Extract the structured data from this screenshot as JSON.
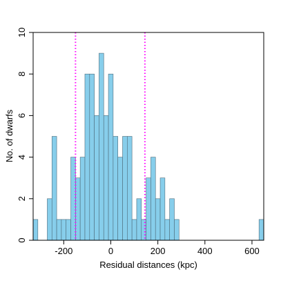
{
  "chart_data": {
    "type": "histogram",
    "xlabel": "Residual distances (kpc)",
    "ylabel": "No. of dwarfs",
    "bins": [
      -330,
      -310,
      -290,
      -270,
      -250,
      -230,
      -210,
      -190,
      -170,
      -150,
      -130,
      -110,
      -90,
      -70,
      -50,
      -30,
      -10,
      10,
      30,
      50,
      70,
      90,
      110,
      130,
      150,
      170,
      190,
      210,
      230,
      250,
      270,
      290,
      310,
      330,
      350,
      370,
      390,
      410,
      430,
      450,
      470,
      490,
      510,
      530,
      550,
      570,
      590,
      610,
      630,
      650
    ],
    "values": [
      1,
      0,
      0,
      2,
      5,
      1,
      1,
      1,
      4,
      3,
      4,
      8,
      8,
      6,
      9,
      6,
      8,
      5,
      4,
      5,
      5,
      1,
      2,
      1,
      3,
      4,
      2,
      3,
      1,
      2,
      1,
      0,
      0,
      0,
      0,
      0,
      0,
      0,
      0,
      0,
      0,
      0,
      0,
      0,
      0,
      0,
      0,
      0,
      1
    ],
    "color": "#87ceeb",
    "edgecolor": "#4d6b7a",
    "xlim": [
      -330,
      650
    ],
    "ylim": [
      0,
      10
    ],
    "xticks": [
      -200,
      0,
      200,
      400,
      600
    ],
    "yticks": [
      0,
      2,
      4,
      6,
      8,
      10
    ],
    "vlines": [
      -150,
      145
    ],
    "vline_color": "#ff00ff"
  }
}
